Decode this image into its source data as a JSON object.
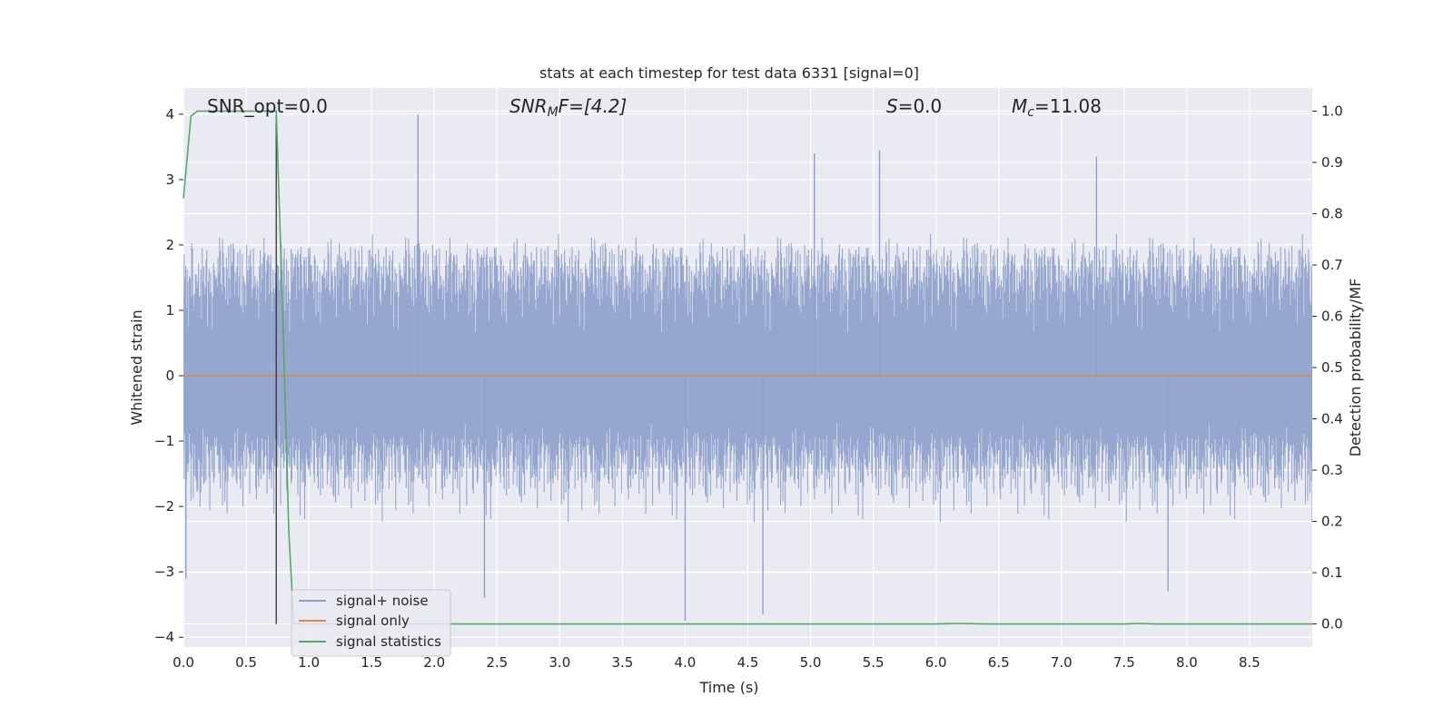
{
  "chart_data": {
    "type": "line",
    "title": "stats at each timestep for test data 6331 [signal=0]",
    "xlabel": "Time (s)",
    "ylabel": "Whitened strain",
    "ylabel_right": "Detection probability/MF",
    "xlim": [
      0.0,
      9.0
    ],
    "ylim": [
      -4.15,
      4.4
    ],
    "ylim_right": [
      -0.045,
      1.045
    ],
    "grid": true,
    "legend_position": "lower-left",
    "xticks": [
      "0.0",
      "0.5",
      "1.0",
      "1.5",
      "2.0",
      "2.5",
      "3.0",
      "3.5",
      "4.0",
      "4.5",
      "5.0",
      "5.5",
      "6.0",
      "6.5",
      "7.0",
      "7.5",
      "8.0",
      "8.5"
    ],
    "yticks": [
      "4",
      "3",
      "2",
      "1",
      "0",
      "−1",
      "−2",
      "−3",
      "−4"
    ],
    "yticks_right": [
      "1.0",
      "0.9",
      "0.8",
      "0.7",
      "0.6",
      "0.5",
      "0.4",
      "0.3",
      "0.2",
      "0.1",
      "0.0"
    ],
    "annotations": {
      "snr_opt": "SNR_opt=0.0",
      "snr_mf_base": "SNR",
      "snr_mf_sub": "M",
      "snr_mf_tail": "F=[4.2]",
      "s_var": "S",
      "s_val": "=0.0",
      "mc_var": "M",
      "mc_sub": "c",
      "mc_val": "=11.08"
    },
    "series": [
      {
        "name": "signal+ noise",
        "axis": "left",
        "color": "#8da0cb",
        "description_points": {
          "x_range": [
            0.0,
            9.0
          ],
          "typical_envelope": [
            -2.0,
            2.3
          ],
          "notable_peaks": [
            [
              1.87,
              4.0
            ],
            [
              5.03,
              3.4
            ],
            [
              5.55,
              3.45
            ],
            [
              7.28,
              3.35
            ],
            [
              4.0,
              -3.75
            ],
            [
              4.62,
              -3.65
            ],
            [
              2.4,
              -3.4
            ],
            [
              7.85,
              -3.3
            ],
            [
              0.02,
              -3.1
            ]
          ]
        }
      },
      {
        "name": "signal only",
        "axis": "left",
        "color": "#dd8452",
        "x": [
          0.0,
          9.0
        ],
        "y": [
          0.0,
          0.0
        ]
      },
      {
        "name": "signal statistics",
        "axis": "right",
        "color": "#55a868",
        "x": [
          0.0,
          0.06,
          0.11,
          0.2,
          0.3,
          0.4,
          0.5,
          0.6,
          0.7,
          0.74,
          0.79,
          0.84,
          0.88,
          1.0,
          2.0,
          3.0,
          4.0,
          5.0,
          6.0,
          6.2,
          6.4,
          7.0,
          7.5,
          7.62,
          7.75,
          8.0,
          9.0
        ],
        "y": [
          0.83,
          0.99,
          1.0,
          1.0,
          1.0,
          1.0,
          1.0,
          1.0,
          1.0,
          1.0,
          0.62,
          0.18,
          0.0,
          0.0,
          0.0,
          0.0,
          0.0,
          0.0,
          0.0,
          0.001,
          0.0,
          0.0,
          0.0,
          0.001,
          0.0,
          0.0,
          0.0
        ]
      }
    ],
    "vertical_marker": {
      "x": 0.74,
      "color": "#333333"
    }
  }
}
